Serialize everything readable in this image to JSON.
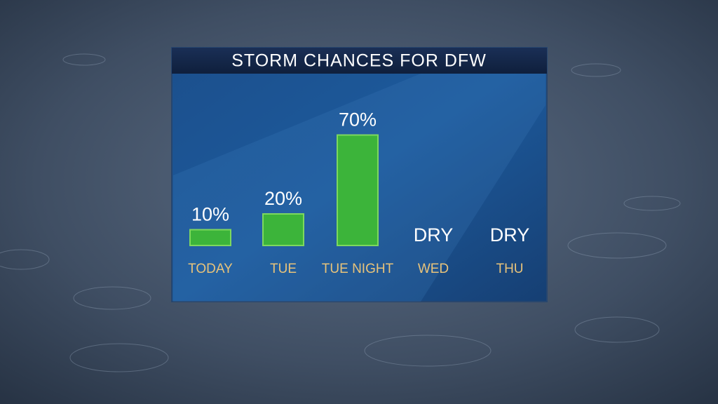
{
  "chart_data": {
    "type": "bar",
    "title": "STORM CHANCES FOR DFW",
    "categories": [
      "TODAY",
      "TUE",
      "TUE NIGHT",
      "WED",
      "THU"
    ],
    "values": [
      10,
      20,
      70,
      null,
      null
    ],
    "value_labels": [
      "10%",
      "20%",
      "70%",
      "DRY",
      "DRY"
    ],
    "color": "#3cb43a"
  }
}
